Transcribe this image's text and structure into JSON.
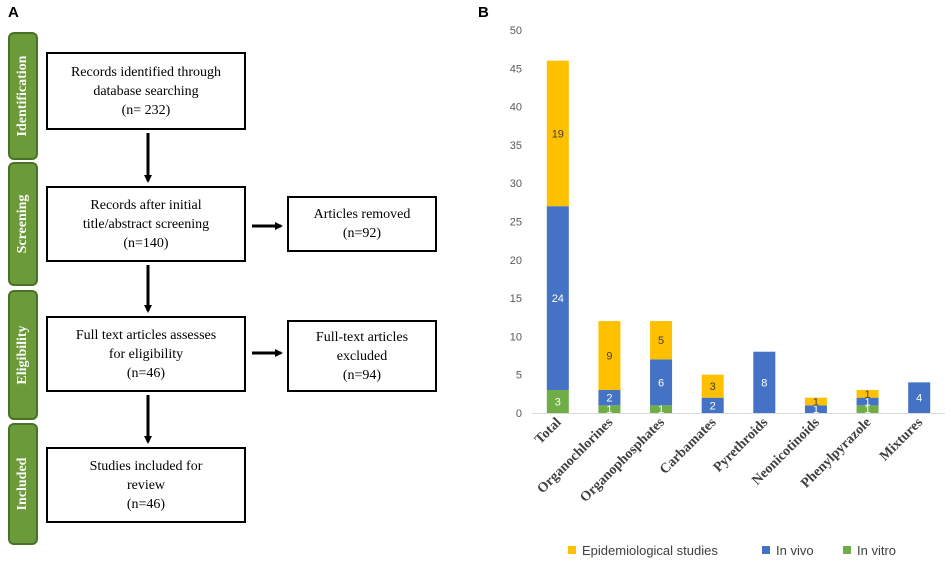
{
  "panel_a": {
    "label": "A",
    "stages": [
      "Identification",
      "Screening",
      "Eligibility",
      "Included"
    ],
    "boxes": {
      "identified": [
        "Records identified through",
        "database searching",
        "(n= 232)"
      ],
      "screened": [
        "Records after initial",
        "title/abstract screening",
        "(n=140)"
      ],
      "removed": [
        "Articles removed",
        "(n=92)"
      ],
      "fulltext": [
        "Full text articles assesses",
        "for eligibility",
        "(n=46)"
      ],
      "excluded": [
        "Full-text articles",
        "excluded",
        "(n=94)"
      ],
      "included": [
        "Studies included for",
        "review",
        "(n=46)"
      ]
    }
  },
  "panel_b": {
    "label": "B"
  },
  "chart_data": {
    "type": "bar",
    "stacked": true,
    "categories": [
      "Total",
      "Organochlorines",
      "Organophosphates",
      "Carbamates",
      "Pyrethroids",
      "Neonicotinoids",
      "Phenylpyrazole",
      "Mixtures"
    ],
    "series": [
      {
        "name": "In vitro",
        "color": "#70ad47",
        "label_color": "#ffffff",
        "values": [
          3,
          1,
          1,
          0,
          0,
          0,
          1,
          0
        ]
      },
      {
        "name": "In vivo",
        "color": "#4472c4",
        "label_color": "#ffffff",
        "values": [
          24,
          2,
          6,
          2,
          8,
          1,
          1,
          4
        ]
      },
      {
        "name": "Epidemiological studies",
        "color": "#ffc000",
        "label_color": "#404040",
        "values": [
          19,
          9,
          5,
          3,
          0,
          1,
          1,
          0
        ]
      }
    ],
    "legend_order": [
      "Epidemiological studies",
      "In vivo",
      "In vitro"
    ],
    "ylim": [
      0,
      50
    ],
    "yticks": [
      0,
      5,
      10,
      15,
      20,
      25,
      30,
      35,
      40,
      45,
      50
    ],
    "grid": false,
    "legend_position": "bottom"
  }
}
